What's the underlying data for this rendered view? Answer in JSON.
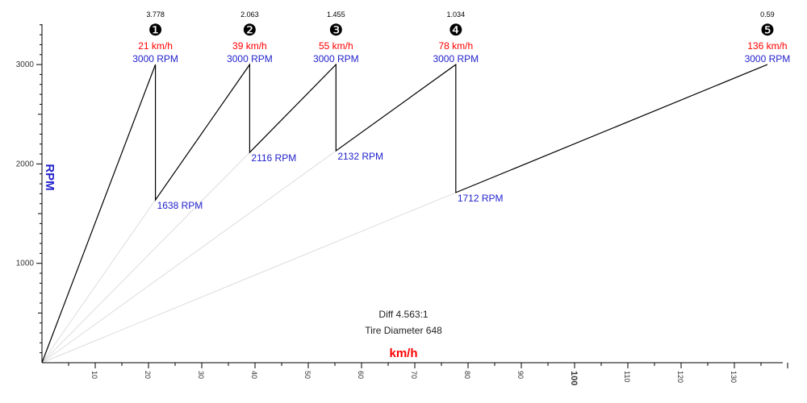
{
  "colors": {
    "speed": "#ff0000",
    "rpm": "#2222cc",
    "axis": "#000000",
    "guide": "#dddddd",
    "ratio": "#000000"
  },
  "chart_data": {
    "type": "line",
    "title": "",
    "xlabel": "km/h",
    "ylabel": "RPM",
    "xlim": [
      0,
      140
    ],
    "ylim": [
      0,
      3400
    ],
    "x_ticks": [
      10,
      20,
      30,
      40,
      50,
      60,
      70,
      80,
      90,
      100,
      110,
      120,
      130
    ],
    "y_ticks": [
      1000,
      2000,
      3000
    ],
    "info": {
      "diff": "Diff 4.563:1",
      "tire": "Tire Diameter 648"
    },
    "gears": [
      {
        "number": "1",
        "symbol": "❶",
        "ratio": "3.778",
        "shift_speed": 21.3,
        "speed_label": "21 km/h",
        "shift_rpm": 3000,
        "rpm_label": "3000 RPM"
      },
      {
        "number": "2",
        "symbol": "❷",
        "ratio": "2.063",
        "shift_speed": 39.0,
        "speed_label": "39 km/h",
        "shift_rpm": 3000,
        "rpm_label": "3000 RPM",
        "drop_rpm": 1638,
        "drop_label": "1638 RPM"
      },
      {
        "number": "3",
        "symbol": "❸",
        "ratio": "1.455",
        "shift_speed": 55.2,
        "speed_label": "55 km/h",
        "shift_rpm": 3000,
        "rpm_label": "3000 RPM",
        "drop_rpm": 2116,
        "drop_label": "2116 RPM"
      },
      {
        "number": "4",
        "symbol": "❹",
        "ratio": "1.034",
        "shift_speed": 77.7,
        "speed_label": "78 km/h",
        "shift_rpm": 3000,
        "rpm_label": "3000 RPM",
        "drop_rpm": 2132,
        "drop_label": "2132 RPM"
      },
      {
        "number": "5",
        "symbol": "❺",
        "ratio": "0.59",
        "shift_speed": 136.2,
        "speed_label": "136 km/h",
        "shift_rpm": 3000,
        "rpm_label": "3000 RPM",
        "drop_rpm": 1712,
        "drop_label": "1712 RPM"
      }
    ]
  }
}
